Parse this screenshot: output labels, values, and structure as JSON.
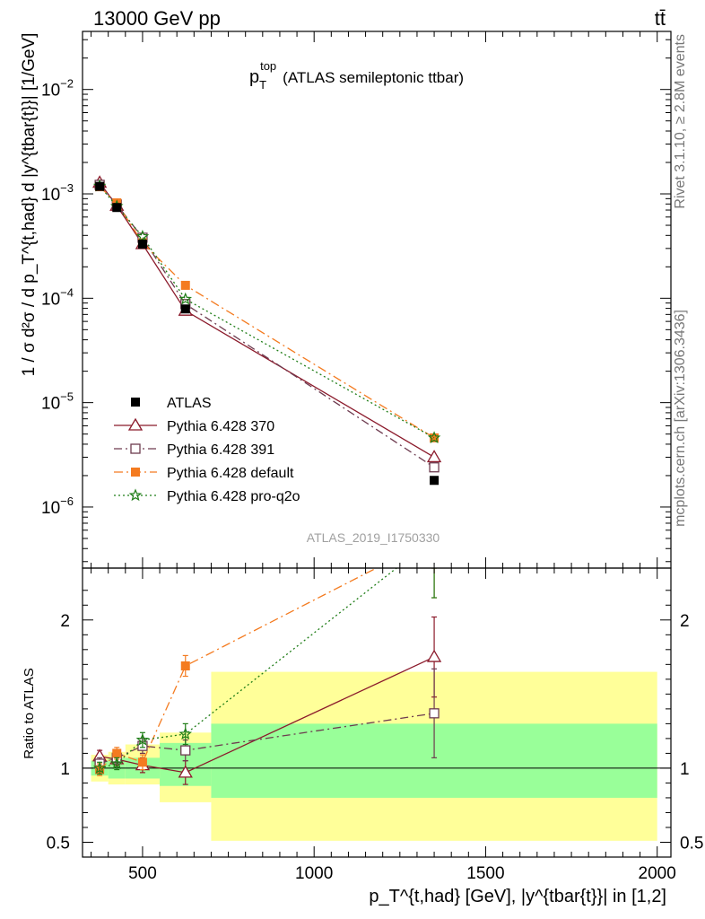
{
  "header": {
    "left_label": "13000 GeV pp",
    "right_label": "tt̄"
  },
  "side_labels": {
    "rivet": "Rivet 3.1.10, ≥ 2.8M events",
    "mcplots": "mcplots.cern.ch [arXiv:1306.3436]"
  },
  "chart_data": {
    "type": "line",
    "title": "p_T^top (ATLAS semileptonic ttbar)",
    "title_parts": {
      "main": "p",
      "sup": "top",
      "sub": "T",
      "rest": "(ATLAS semileptonic ttbar)"
    },
    "analysis_id": "ATLAS_2019_I1750330",
    "xlabel": "p_T^{t,had} [GeV], |y^{tbar{t}}| in [1,2]",
    "ylabel": "1 / σ d²σ / d p_T^{t,had} d |y^{tbar{t}}| [1/GeV]",
    "ratio_ylabel": "Ratio to ATLAS",
    "xlim": [
      325,
      2040
    ],
    "ylim": [
      2.6e-07,
      0.036
    ],
    "yscale": "log",
    "ratio_ylim": [
      0.4,
      2.35
    ],
    "x_ticks": [
      500,
      1000,
      1500,
      2000
    ],
    "y_ticks": [
      "10^-6",
      "10^-5",
      "10^-4",
      "10^-3",
      "10^-2"
    ],
    "ratio_ticks": [
      0.5,
      1,
      2
    ],
    "legend_position": "lower-left",
    "bins": [
      {
        "lo": 350,
        "hi": 400
      },
      {
        "lo": 400,
        "hi": 450
      },
      {
        "lo": 450,
        "hi": 550
      },
      {
        "lo": 550,
        "hi": 700
      },
      {
        "lo": 700,
        "hi": 2000
      }
    ],
    "band_stat": [
      {
        "lo": 0.95,
        "hi": 1.05
      },
      {
        "lo": 0.93,
        "hi": 1.07
      },
      {
        "lo": 0.93,
        "hi": 1.07
      },
      {
        "lo": 0.88,
        "hi": 1.17
      },
      {
        "lo": 0.8,
        "hi": 1.3
      }
    ],
    "band_total": [
      {
        "lo": 0.91,
        "hi": 1.09
      },
      {
        "lo": 0.89,
        "hi": 1.11
      },
      {
        "lo": 0.89,
        "hi": 1.16
      },
      {
        "lo": 0.77,
        "hi": 1.24
      },
      {
        "lo": 0.51,
        "hi": 1.65
      }
    ],
    "series": [
      {
        "name": "ATLAS",
        "color": "#000000",
        "marker": "filled-square",
        "x": [
          375,
          425,
          500,
          625,
          1350
        ],
        "y": [
          0.00118,
          0.00074,
          0.00033,
          7.9e-05,
          1.8e-06
        ],
        "ratio": [
          1,
          1,
          1,
          1,
          1
        ]
      },
      {
        "name": "Pythia 6.428 370",
        "color": "#8b1a2b",
        "marker": "open-triangle",
        "dash": "",
        "x": [
          375,
          425,
          500,
          625,
          1350
        ],
        "y": [
          0.00128,
          0.00077,
          0.00033,
          7.6e-05,
          3e-06
        ],
        "ratio": [
          1.08,
          1.06,
          1.02,
          0.97,
          1.75
        ],
        "ratio_err": [
          0.04,
          0.04,
          0.05,
          0.08,
          0.27
        ]
      },
      {
        "name": "Pythia 6.428 391",
        "color": "#6d3b4f",
        "marker": "open-square",
        "dash": "9,4,2,4",
        "x": [
          375,
          425,
          500,
          625,
          1350
        ],
        "y": [
          0.00122,
          0.00079,
          0.00038,
          8.8e-05,
          2.4e-06
        ],
        "ratio": [
          1.03,
          1.07,
          1.15,
          1.12,
          1.37
        ],
        "ratio_err": [
          0.04,
          0.04,
          0.05,
          0.07,
          0.3
        ]
      },
      {
        "name": "Pythia 6.428 default",
        "color": "#f47b20",
        "marker": "filled-square",
        "dash": "10,4,2,4",
        "x": [
          375,
          425,
          500,
          625,
          1350
        ],
        "y": [
          0.00117,
          0.00082,
          0.00034,
          0.000133,
          4.6e-06
        ],
        "ratio": [
          0.99,
          1.1,
          1.04,
          1.69,
          2.55
        ],
        "ratio_err": [
          0.04,
          0.04,
          0.05,
          0.07,
          0.4
        ]
      },
      {
        "name": "Pythia 6.428 pro-q2o",
        "color": "#1f7d17",
        "marker": "star",
        "dash": "2,3",
        "x": [
          375,
          425,
          500,
          625,
          1350
        ],
        "y": [
          0.00119,
          0.00076,
          0.00039,
          9.8e-05,
          4.6e-06
        ],
        "ratio": [
          1.0,
          1.03,
          1.19,
          1.23,
          2.55
        ],
        "ratio_err": [
          0.04,
          0.04,
          0.05,
          0.07,
          0.4
        ]
      }
    ]
  }
}
